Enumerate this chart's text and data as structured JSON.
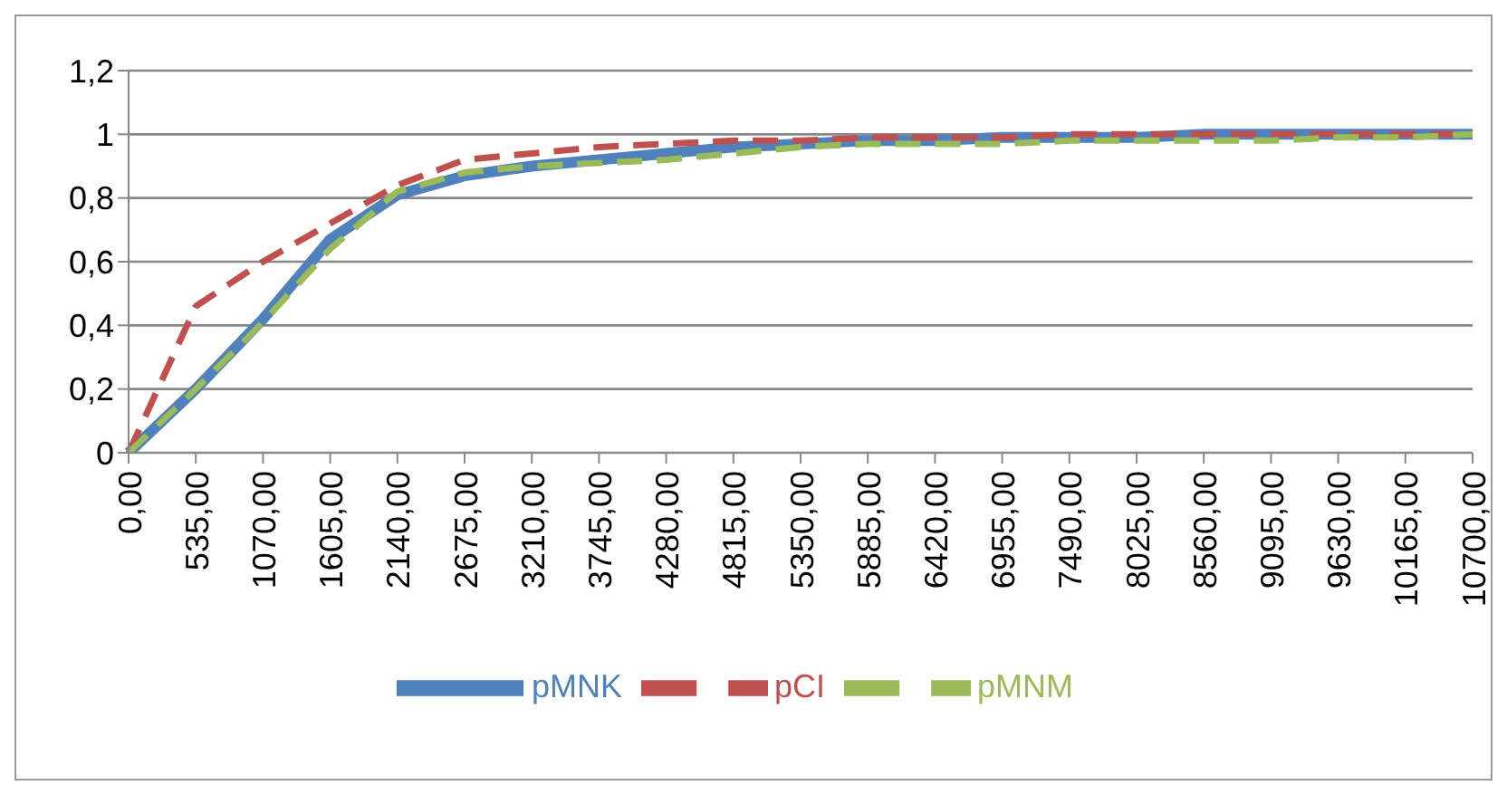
{
  "chart_data": {
    "type": "line",
    "categories": [
      "0,00",
      "535,00",
      "1070,00",
      "1605,00",
      "2140,00",
      "2675,00",
      "3210,00",
      "3745,00",
      "4280,00",
      "4815,00",
      "5350,00",
      "5885,00",
      "6420,00",
      "6955,00",
      "7490,00",
      "8025,00",
      "8560,00",
      "9095,00",
      "9630,00",
      "10165,00",
      "10700,00"
    ],
    "series": [
      {
        "name": "pMNK",
        "color": "#4f81bd",
        "line_style": "solid",
        "values": [
          0,
          0.2,
          0.42,
          0.67,
          0.81,
          0.87,
          0.9,
          0.92,
          0.94,
          0.96,
          0.97,
          0.98,
          0.98,
          0.99,
          0.99,
          0.99,
          1.0,
          1.0,
          1.0,
          1.0,
          1.0
        ]
      },
      {
        "name": "pCI",
        "color": "#c0504d",
        "line_style": "dashed",
        "values": [
          0,
          0.46,
          0.6,
          0.72,
          0.84,
          0.92,
          0.94,
          0.96,
          0.97,
          0.98,
          0.98,
          0.99,
          0.99,
          0.99,
          1.0,
          1.0,
          1.0,
          1.0,
          1.0,
          1.0,
          1.0
        ]
      },
      {
        "name": "pMNM",
        "color": "#9bbb59",
        "line_style": "dashed",
        "values": [
          0,
          0.2,
          0.41,
          0.64,
          0.82,
          0.88,
          0.9,
          0.91,
          0.92,
          0.94,
          0.96,
          0.97,
          0.97,
          0.97,
          0.98,
          0.98,
          0.98,
          0.98,
          0.99,
          0.99,
          1.0
        ]
      }
    ],
    "ylim": [
      0,
      1.2
    ],
    "yticks": [
      0,
      {
        "value": 0.2,
        "label": "0,2"
      },
      {
        "value": 0.4,
        "label": "0,4"
      },
      {
        "value": 0.6,
        "label": "0,6"
      },
      {
        "value": 0.8,
        "label": "0,8"
      },
      1,
      {
        "value": 1.2,
        "label": "1,2"
      }
    ],
    "grid": "y",
    "legend": "bottom",
    "marker": "none"
  }
}
